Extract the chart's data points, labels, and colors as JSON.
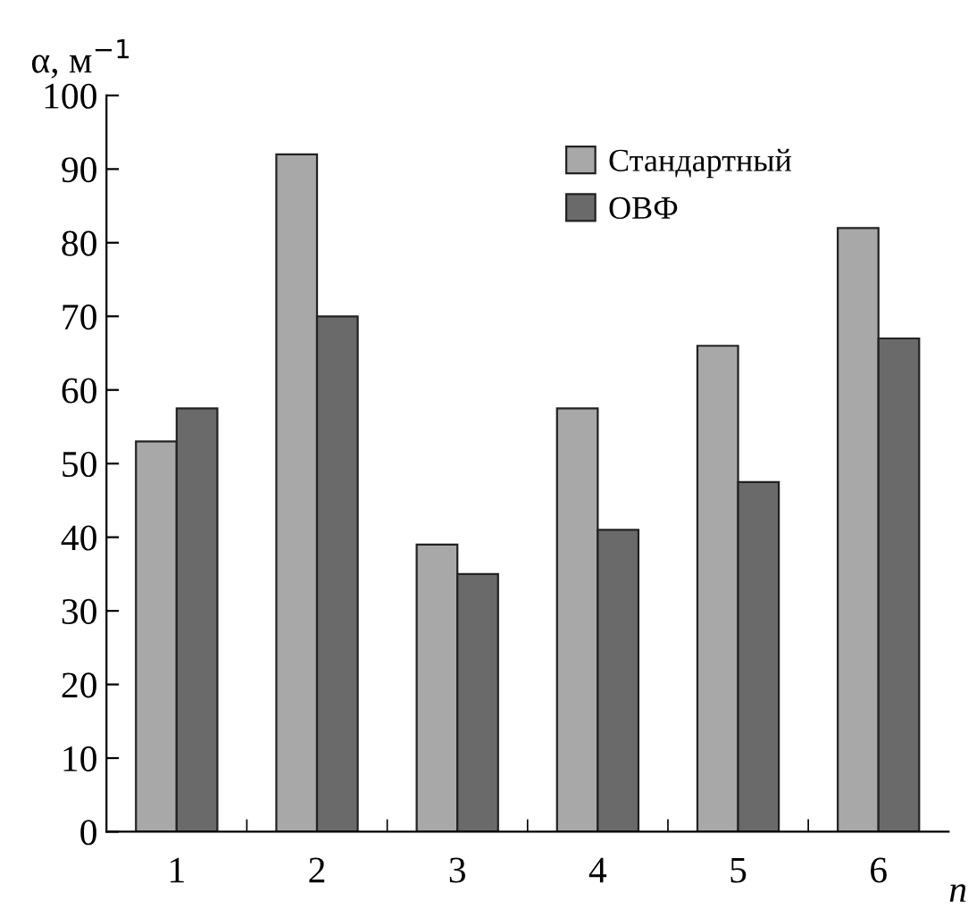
{
  "chart_data": {
    "type": "bar",
    "ylabel": "α, м$^{−1}$",
    "xlabel": "n",
    "categories": [
      "1",
      "2",
      "3",
      "4",
      "5",
      "6"
    ],
    "series": [
      {
        "name": "Стандартный",
        "color": "#a8a8a8",
        "values": [
          53,
          92,
          39,
          57.5,
          66,
          82
        ]
      },
      {
        "name": "ОВФ",
        "color": "#6a6a6a",
        "values": [
          57.5,
          70,
          35,
          41,
          47.5,
          67
        ]
      }
    ],
    "ylim": [
      0,
      100
    ],
    "yticks": [
      0,
      10,
      20,
      30,
      40,
      50,
      60,
      70,
      80,
      90,
      100
    ],
    "grid": false,
    "legend": "top right"
  }
}
